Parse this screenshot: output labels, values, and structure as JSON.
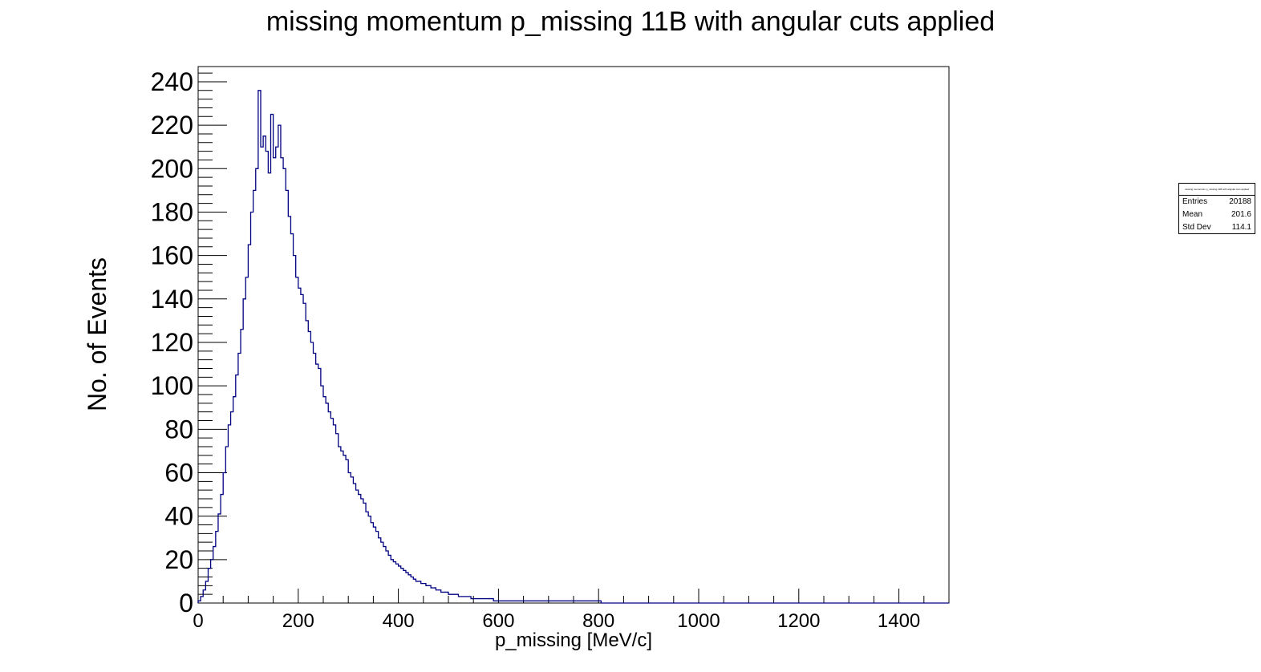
{
  "chart_data": {
    "type": "histogram",
    "title": "missing momentum p_missing 11B with angular cuts applied",
    "xlabel": "p_missing [MeV/c]",
    "ylabel": "No. of Events",
    "xlim": [
      0,
      1500
    ],
    "ylim": [
      0,
      247
    ],
    "xticks": [
      0,
      200,
      400,
      600,
      800,
      1000,
      1200,
      1400
    ],
    "yticks": [
      0,
      20,
      40,
      60,
      80,
      100,
      120,
      140,
      160,
      180,
      200,
      220,
      240
    ],
    "grid": false,
    "color": "#000080",
    "bin_width": 5,
    "series": [
      {
        "bin_centers": [
          2.5,
          7.5,
          12.5,
          17.5,
          22.5,
          27.5,
          32.5,
          37.5,
          42.5,
          47.5,
          52.5,
          57.5,
          62.5,
          67.5,
          72.5,
          77.5,
          82.5,
          87.5,
          92.5,
          97.5,
          102.5,
          107.5,
          112.5,
          117.5,
          122.5,
          127.5,
          132.5,
          137.5,
          142.5,
          147.5,
          152.5,
          157.5,
          162.5,
          167.5,
          172.5,
          177.5,
          182.5,
          187.5,
          192.5,
          197.5,
          202.5,
          207.5,
          212.5,
          217.5,
          222.5,
          227.5,
          232.5,
          237.5,
          242.5,
          247.5,
          252.5,
          257.5,
          262.5,
          267.5,
          272.5,
          277.5,
          282.5,
          287.5,
          292.5,
          297.5,
          302.5,
          307.5,
          312.5,
          317.5,
          322.5,
          327.5,
          332.5,
          337.5,
          342.5,
          347.5,
          352.5,
          357.5,
          362.5,
          367.5,
          372.5,
          377.5,
          382.5,
          387.5,
          392.5,
          397.5,
          402.5,
          407.5,
          412.5,
          417.5,
          422.5,
          427.5,
          432.5,
          437.5,
          442.5,
          447.5,
          452.5,
          457.5,
          462.5,
          467.5,
          472.5,
          477.5,
          482.5,
          487.5,
          492.5,
          497.5,
          502.5,
          507.5,
          512.5,
          517.5,
          522.5,
          527.5,
          532.5,
          537.5,
          542.5,
          547.5,
          552.5,
          557.5,
          562.5,
          567.5,
          572.5,
          577.5,
          582.5,
          587.5,
          592.5,
          597.5,
          602.5,
          607.5,
          612.5,
          617.5,
          622.5,
          627.5,
          632.5,
          637.5,
          642.5,
          647.5,
          652.5,
          657.5,
          662.5,
          667.5,
          672.5,
          677.5,
          682.5,
          687.5,
          692.5,
          697.5,
          702.5,
          707.5,
          712.5,
          717.5,
          722.5,
          727.5,
          732.5,
          737.5,
          742.5,
          747.5,
          752.5,
          757.5,
          762.5,
          767.5,
          772.5,
          777.5,
          782.5,
          787.5,
          792.5,
          797.5,
          802.5,
          807.5,
          812.5,
          817.5,
          822.5,
          827.5,
          832.5,
          837.5,
          842.5,
          847.5,
          852.5,
          857.5,
          862.5,
          867.5,
          872.5,
          877.5,
          882.5,
          887.5,
          892.5,
          897.5
        ],
        "counts": [
          1,
          3,
          6,
          10,
          16,
          20,
          26,
          33,
          41,
          50,
          60,
          72,
          82,
          88,
          95,
          105,
          115,
          126,
          140,
          150,
          165,
          180,
          190,
          200,
          236,
          210,
          215,
          208,
          198,
          225,
          205,
          210,
          220,
          205,
          200,
          190,
          178,
          170,
          160,
          150,
          145,
          142,
          138,
          130,
          125,
          120,
          115,
          110,
          108,
          100,
          95,
          92,
          88,
          85,
          82,
          78,
          72,
          70,
          68,
          66,
          60,
          58,
          55,
          52,
          50,
          48,
          46,
          42,
          40,
          37,
          35,
          33,
          30,
          28,
          26,
          24,
          22,
          20,
          19,
          18,
          17,
          16,
          15,
          14,
          13,
          12,
          11,
          10,
          10,
          9,
          9,
          8,
          8,
          7,
          7,
          6,
          6,
          5,
          5,
          5,
          4,
          4,
          4,
          4,
          3,
          3,
          3,
          3,
          3,
          2,
          2,
          2,
          2,
          2,
          2,
          2,
          2,
          2,
          1,
          1,
          1,
          1,
          1,
          1,
          1,
          1,
          1,
          1,
          1,
          1,
          1,
          1,
          1,
          1,
          1,
          1,
          1,
          1,
          1,
          1,
          1,
          1,
          1,
          1,
          1,
          1,
          1,
          1,
          1,
          1,
          1,
          1,
          1,
          1,
          1,
          1,
          1,
          1,
          1,
          1,
          1,
          0,
          0,
          0,
          0,
          0,
          0,
          0,
          0,
          0,
          0,
          0,
          0,
          0,
          0,
          0,
          0,
          0,
          0,
          0,
          0,
          0
        ]
      }
    ],
    "stats": {
      "title": "missing momentum p_missing 11B with angular cuts applied",
      "rows": [
        {
          "label": "Entries",
          "value": "20188"
        },
        {
          "label": "Mean",
          "value": "201.6"
        },
        {
          "label": "Std Dev",
          "value": "114.1"
        }
      ]
    }
  }
}
